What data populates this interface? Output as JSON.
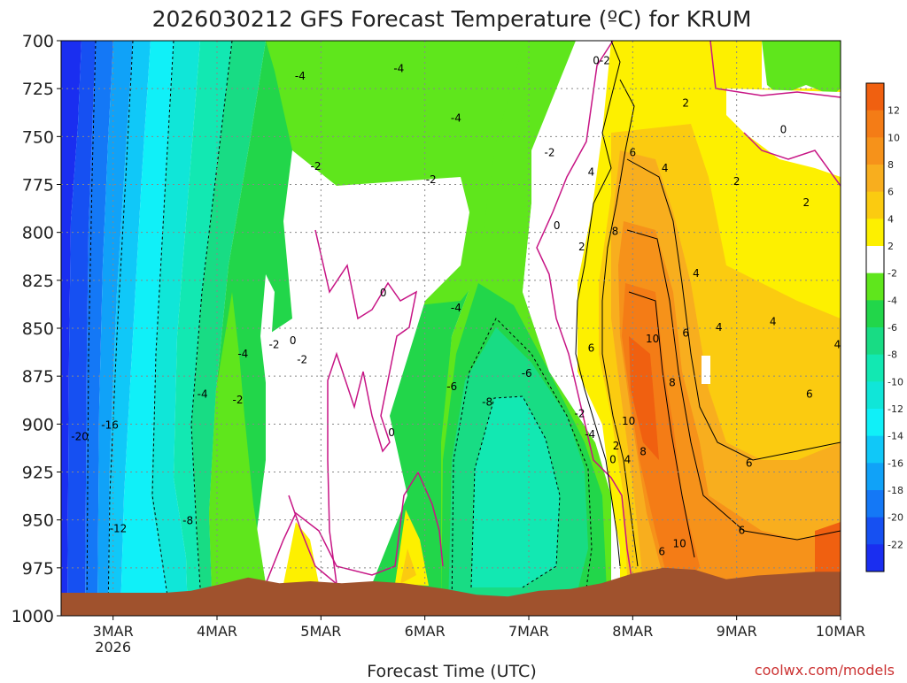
{
  "chart_data": {
    "type": "heatmap",
    "title": "2026030212 GFS Forecast Temperature (ºC) for KRUM",
    "xlabel": "Forecast Time (UTC)",
    "ylabel": "",
    "watermark": "coolwx.com/models",
    "y_axis": {
      "scale": "linear",
      "inverted": true,
      "range": [
        700,
        1000
      ],
      "ticks": [
        "700",
        "725",
        "750",
        "775",
        "800",
        "825",
        "850",
        "875",
        "900",
        "925",
        "950",
        "975",
        "1000"
      ]
    },
    "x_axis": {
      "range": [
        "2026-03-02T12Z",
        "2026-03-10T00Z"
      ],
      "ticks": [
        {
          "label": "3MAR",
          "sublabel": "2026",
          "day": 3
        },
        {
          "label": "4MAR",
          "sublabel": "",
          "day": 4
        },
        {
          "label": "5MAR",
          "sublabel": "",
          "day": 5
        },
        {
          "label": "6MAR",
          "sublabel": "",
          "day": 6
        },
        {
          "label": "7MAR",
          "sublabel": "",
          "day": 7
        },
        {
          "label": "8MAR",
          "sublabel": "",
          "day": 8
        },
        {
          "label": "9MAR",
          "sublabel": "",
          "day": 9
        },
        {
          "label": "10MAR",
          "sublabel": "",
          "day": 10
        }
      ]
    },
    "grid": true,
    "colorbar": {
      "placement": "right",
      "labels": [
        "12",
        "10",
        "8",
        "6",
        "4",
        "2",
        "-2",
        "-4",
        "-6",
        "-8",
        "-10",
        "-12",
        "-14",
        "-16",
        "-18",
        "-20",
        "-22"
      ],
      "bins": [
        {
          "min": 12,
          "max": 14,
          "color": "#f06010"
        },
        {
          "min": 10,
          "max": 12,
          "color": "#f47c16"
        },
        {
          "min": 8,
          "max": 10,
          "color": "#f6921a"
        },
        {
          "min": 6,
          "max": 8,
          "color": "#f8ae1e"
        },
        {
          "min": 4,
          "max": 6,
          "color": "#fbcb10"
        },
        {
          "min": 2,
          "max": 4,
          "color": "#fdf000"
        },
        {
          "min": -2,
          "max": 2,
          "color": "#ffffff"
        },
        {
          "min": -4,
          "max": -2,
          "color": "#5fe61c"
        },
        {
          "min": -6,
          "max": -4,
          "color": "#22d64a"
        },
        {
          "min": -8,
          "max": -6,
          "color": "#18dc84"
        },
        {
          "min": -10,
          "max": -8,
          "color": "#12e8b2"
        },
        {
          "min": -12,
          "max": -10,
          "color": "#10e6d8"
        },
        {
          "min": -14,
          "max": -12,
          "color": "#10f0f8"
        },
        {
          "min": -16,
          "max": -14,
          "color": "#10c8f8"
        },
        {
          "min": -18,
          "max": -16,
          "color": "#10a2f8"
        },
        {
          "min": -20,
          "max": -18,
          "color": "#1478f6"
        },
        {
          "min": -22,
          "max": -20,
          "color": "#1650f2"
        },
        {
          "min": -24,
          "max": -22,
          "color": "#1a2ef0"
        }
      ]
    },
    "colors": {
      "terrain": "#a0522d",
      "zero_isotherm": "#c71585",
      "contour": "#000000",
      "watermark": "#cc3333",
      "grid": "#888888"
    },
    "terrain_surface_hpa": [
      {
        "day": 2.5,
        "p": 988
      },
      {
        "day": 3.0,
        "p": 988
      },
      {
        "day": 3.5,
        "p": 988
      },
      {
        "day": 3.75,
        "p": 987
      },
      {
        "day": 4.0,
        "p": 984
      },
      {
        "day": 4.3,
        "p": 980
      },
      {
        "day": 4.6,
        "p": 983
      },
      {
        "day": 4.9,
        "p": 982
      },
      {
        "day": 5.2,
        "p": 983
      },
      {
        "day": 5.5,
        "p": 982
      },
      {
        "day": 5.8,
        "p": 983
      },
      {
        "day": 6.2,
        "p": 986
      },
      {
        "day": 6.5,
        "p": 989
      },
      {
        "day": 6.8,
        "p": 990
      },
      {
        "day": 7.1,
        "p": 987
      },
      {
        "day": 7.4,
        "p": 986
      },
      {
        "day": 7.7,
        "p": 983
      },
      {
        "day": 8.0,
        "p": 978
      },
      {
        "day": 8.3,
        "p": 975
      },
      {
        "day": 8.6,
        "p": 976
      },
      {
        "day": 8.9,
        "p": 981
      },
      {
        "day": 9.2,
        "p": 979
      },
      {
        "day": 9.5,
        "p": 978
      },
      {
        "day": 9.75,
        "p": 977
      },
      {
        "day": 10.0,
        "p": 977
      }
    ],
    "contour_labels": [
      {
        "text": "-20",
        "day": 2.68,
        "p": 906
      },
      {
        "text": "-16",
        "day": 2.97,
        "p": 900
      },
      {
        "text": "-12",
        "day": 3.05,
        "p": 954
      },
      {
        "text": "-8",
        "day": 3.72,
        "p": 950
      },
      {
        "text": "-4",
        "day": 3.86,
        "p": 884
      },
      {
        "text": "-2",
        "day": 4.2,
        "p": 887
      },
      {
        "text": "-4",
        "day": 4.25,
        "p": 863
      },
      {
        "text": "-2",
        "day": 4.55,
        "p": 858
      },
      {
        "text": "-4",
        "day": 4.8,
        "p": 718
      },
      {
        "text": "-2",
        "day": 4.95,
        "p": 765
      },
      {
        "text": "-2",
        "day": 4.82,
        "p": 866
      },
      {
        "text": "0",
        "day": 4.73,
        "p": 856
      },
      {
        "text": "0",
        "day": 5.6,
        "p": 831
      },
      {
        "text": "0",
        "day": 5.68,
        "p": 904
      },
      {
        "text": "-4",
        "day": 5.75,
        "p": 714
      },
      {
        "text": "-2",
        "day": 6.06,
        "p": 772
      },
      {
        "text": "-4",
        "day": 6.3,
        "p": 740
      },
      {
        "text": "-4",
        "day": 6.3,
        "p": 839
      },
      {
        "text": "-6",
        "day": 6.26,
        "p": 880
      },
      {
        "text": "-8",
        "day": 6.6,
        "p": 888
      },
      {
        "text": "-6",
        "day": 6.98,
        "p": 873
      },
      {
        "text": "-2",
        "day": 7.2,
        "p": 758
      },
      {
        "text": "0",
        "day": 7.27,
        "p": 796
      },
      {
        "text": "-2",
        "day": 7.49,
        "p": 894
      },
      {
        "text": "-4",
        "day": 7.59,
        "p": 905
      },
      {
        "text": "0-2",
        "day": 7.7,
        "p": 710
      },
      {
        "text": "2",
        "day": 7.51,
        "p": 807
      },
      {
        "text": "4",
        "day": 7.6,
        "p": 768
      },
      {
        "text": "6",
        "day": 7.6,
        "p": 860
      },
      {
        "text": "6",
        "day": 8.0,
        "p": 758
      },
      {
        "text": "8",
        "day": 7.83,
        "p": 799
      },
      {
        "text": "10",
        "day": 8.19,
        "p": 855
      },
      {
        "text": "8",
        "day": 8.38,
        "p": 878
      },
      {
        "text": "10",
        "day": 7.96,
        "p": 898
      },
      {
        "text": "2",
        "day": 7.84,
        "p": 911
      },
      {
        "text": "0",
        "day": 7.81,
        "p": 918
      },
      {
        "text": "4",
        "day": 7.95,
        "p": 918
      },
      {
        "text": "8",
        "day": 8.1,
        "p": 914
      },
      {
        "text": "4",
        "day": 8.31,
        "p": 766
      },
      {
        "text": "2",
        "day": 8.51,
        "p": 732
      },
      {
        "text": "4",
        "day": 8.61,
        "p": 821
      },
      {
        "text": "6",
        "day": 8.51,
        "p": 852
      },
      {
        "text": "4",
        "day": 8.83,
        "p": 849
      },
      {
        "text": "2",
        "day": 9.0,
        "p": 773
      },
      {
        "text": "0",
        "day": 9.45,
        "p": 746
      },
      {
        "text": "2",
        "day": 9.67,
        "p": 784
      },
      {
        "text": "4",
        "day": 9.35,
        "p": 846
      },
      {
        "text": "6",
        "day": 9.7,
        "p": 884
      },
      {
        "text": "6",
        "day": 9.12,
        "p": 920
      },
      {
        "text": "6",
        "day": 9.05,
        "p": 955
      },
      {
        "text": "4",
        "day": 9.97,
        "p": 858
      },
      {
        "text": "10",
        "day": 8.45,
        "p": 962
      },
      {
        "text": "6",
        "day": 8.28,
        "p": 966
      }
    ]
  }
}
